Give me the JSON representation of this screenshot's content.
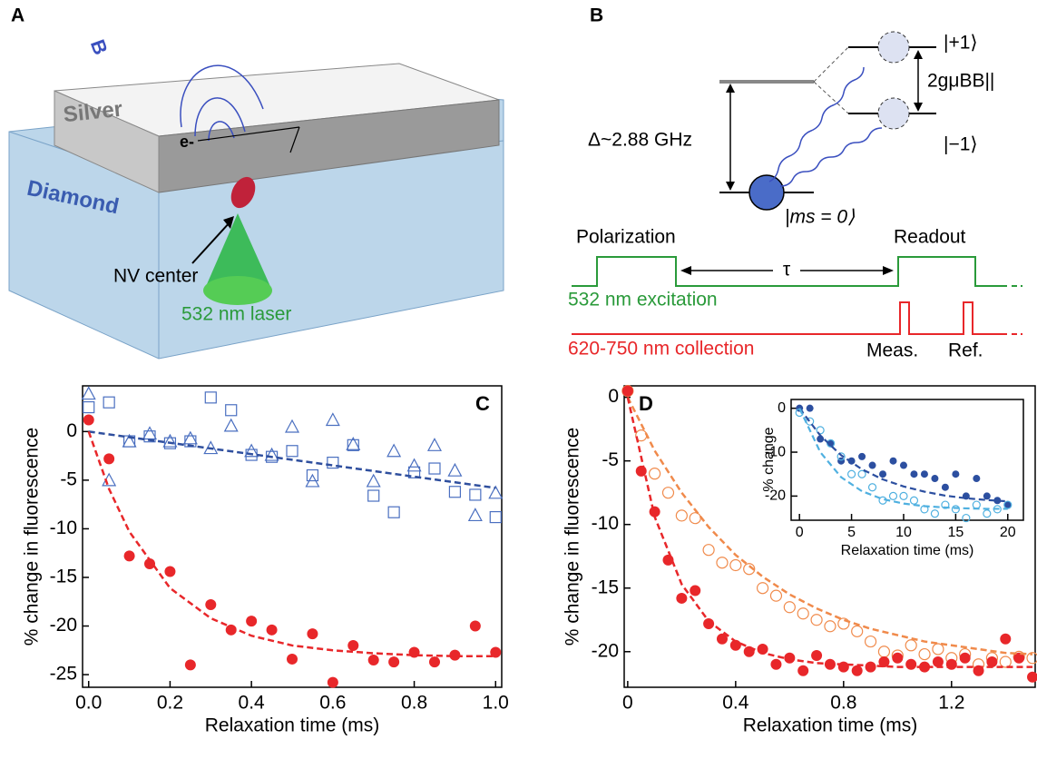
{
  "diagrams": {
    "a": {
      "label": "A",
      "silver": "Silver",
      "diamond": "Diamond",
      "electron": "e-",
      "field": "B",
      "nv_center": "NV center",
      "laser": "532 nm laser"
    },
    "b": {
      "label": "B",
      "plus_one": "|+1⟩",
      "splitting": "2gμBB||",
      "gap": "Δ~2.88 GHz",
      "minus_one": "|−1⟩",
      "ground": "|ms = 0⟩",
      "polarization": "Polarization",
      "tau": "τ",
      "readout": "Readout",
      "excitation": "532 nm excitation",
      "collection": "620-750 nm collection",
      "meas": "Meas.",
      "ref": "Ref."
    }
  },
  "chart_data": [
    {
      "type": "scatter",
      "panel_label": "C",
      "xlabel": "Relaxation time (ms)",
      "ylabel": "% change in fluorescence",
      "xlim": [
        -0.015,
        1.015
      ],
      "ylim": [
        -26.3,
        4.7
      ],
      "xticks": [
        {
          "value": 0,
          "label": "0.0"
        },
        0.2,
        0.4,
        0.6,
        0.8,
        {
          "value": 1,
          "label": "1.0"
        }
      ],
      "yticks": [
        0,
        -5,
        -10,
        -15,
        -20,
        -25
      ],
      "series": [
        {
          "marker": "open-square",
          "color": "#4a6fc0",
          "x": [
            0,
            0.05,
            0.1,
            0.15,
            0.2,
            0.25,
            0.3,
            0.35,
            0.4,
            0.45,
            0.5,
            0.55,
            0.6,
            0.65,
            0.7,
            0.75,
            0.8,
            0.85,
            0.9,
            0.95,
            1.0
          ],
          "values": [
            2.5,
            3,
            -1,
            -0.5,
            -1.2,
            -1,
            3.5,
            2.2,
            -2.4,
            -2.6,
            -2,
            -4.5,
            -3.2,
            -1.4,
            -6.6,
            -8.3,
            -4.2,
            -3.8,
            -6.2,
            -6.5,
            -8.8
          ]
        },
        {
          "marker": "open-triangle",
          "color": "#4a6fc0",
          "x": [
            0,
            0.05,
            0.1,
            0.15,
            0.2,
            0.25,
            0.3,
            0.35,
            0.4,
            0.45,
            0.5,
            0.55,
            0.6,
            0.65,
            0.7,
            0.75,
            0.8,
            0.85,
            0.9,
            0.95,
            1.0
          ],
          "values": [
            3.9,
            -5,
            -1,
            -0.2,
            -1,
            -0.7,
            -1.7,
            0.6,
            -2,
            -2.4,
            0.5,
            -5.1,
            1.2,
            -1.3,
            -5.1,
            -2,
            -3.5,
            -1.4,
            -4,
            -8.6,
            -6.3
          ]
        },
        {
          "marker": "filled-circle",
          "color": "#e8272a",
          "x": [
            0,
            0.05,
            0.1,
            0.15,
            0.2,
            0.25,
            0.3,
            0.35,
            0.4,
            0.45,
            0.5,
            0.55,
            0.6,
            0.65,
            0.7,
            0.75,
            0.8,
            0.85,
            0.9,
            0.95,
            1.0
          ],
          "values": [
            1.2,
            -2.8,
            -12.8,
            -13.6,
            -14.4,
            -24,
            -17.8,
            -20.4,
            -19.5,
            -20.4,
            -23.4,
            -20.8,
            -25.8,
            -22,
            -23.5,
            -23.7,
            -22.7,
            -23.7,
            -23,
            -20,
            -22.7
          ]
        },
        {
          "marker": "dashed-line",
          "color": "#2f4f9e",
          "x": [
            0,
            1.0
          ],
          "values": [
            0,
            -5.8
          ]
        },
        {
          "marker": "dashed-line",
          "color": "#e8272a",
          "x": [
            0,
            0.05,
            0.1,
            0.2,
            0.3,
            0.4,
            0.5,
            0.6,
            0.7,
            0.8,
            0.9,
            1.0
          ],
          "values": [
            0,
            -5.9,
            -10.3,
            -16.1,
            -19.2,
            -21,
            -22,
            -22.5,
            -22.8,
            -23,
            -23.1,
            -23.1
          ]
        }
      ]
    },
    {
      "type": "scatter",
      "panel_label": "D",
      "xlabel": "Relaxation time (ms)",
      "ylabel": "% change in fluorescence",
      "xlim": [
        -0.013,
        1.51
      ],
      "ylim": [
        -22.8,
        0.9
      ],
      "xticks": [
        0,
        0.4,
        0.8,
        1.2
      ],
      "yticks": [
        0,
        -5,
        -10,
        -15,
        -20
      ],
      "series": [
        {
          "marker": "open-circle",
          "color": "#f08a4b",
          "x": [
            0,
            0.05,
            0.1,
            0.15,
            0.2,
            0.25,
            0.3,
            0.35,
            0.4,
            0.45,
            0.5,
            0.55,
            0.6,
            0.65,
            0.7,
            0.75,
            0.8,
            0.85,
            0.9,
            0.95,
            1.0,
            1.05,
            1.1,
            1.15,
            1.2,
            1.25,
            1.3,
            1.35,
            1.4,
            1.45,
            1.5
          ],
          "values": [
            0.5,
            -3,
            -6,
            -7.5,
            -9.3,
            -9.5,
            -12,
            -13,
            -13.2,
            -13.5,
            -15,
            -15.6,
            -16.5,
            -17,
            -17.5,
            -18,
            -17.8,
            -18.4,
            -19.2,
            -20,
            -20.3,
            -19.5,
            -20.2,
            -19.8,
            -20.5,
            -20.2,
            -21,
            -20.5,
            -20.8,
            -20.4,
            -20.5
          ]
        },
        {
          "marker": "filled-circle",
          "color": "#e8272a",
          "x": [
            0,
            0.05,
            0.1,
            0.15,
            0.2,
            0.25,
            0.3,
            0.35,
            0.4,
            0.45,
            0.5,
            0.55,
            0.6,
            0.65,
            0.7,
            0.75,
            0.8,
            0.85,
            0.9,
            0.95,
            1.0,
            1.05,
            1.1,
            1.15,
            1.2,
            1.25,
            1.3,
            1.35,
            1.4,
            1.45,
            1.5
          ],
          "values": [
            0.5,
            -5.8,
            -9,
            -12.8,
            -15.8,
            -15.2,
            -17.8,
            -19,
            -19.5,
            -20,
            -19.8,
            -21,
            -20.5,
            -21.5,
            -20.3,
            -21,
            -21.2,
            -21.5,
            -21.2,
            -20.8,
            -20.5,
            -21,
            -21.2,
            -20.8,
            -21,
            -20.5,
            -21.5,
            -20.8,
            -19,
            -20.5,
            -22
          ]
        },
        {
          "marker": "dashed-line",
          "color": "#f08a4b",
          "x": [
            0,
            0.1,
            0.2,
            0.3,
            0.4,
            0.5,
            0.6,
            0.7,
            0.8,
            0.9,
            1.0,
            1.1,
            1.2,
            1.3,
            1.4,
            1.5
          ],
          "values": [
            0,
            -4.2,
            -7.5,
            -10.2,
            -12.4,
            -14.1,
            -15.5,
            -16.6,
            -17.5,
            -18.2,
            -18.7,
            -19.2,
            -19.5,
            -19.8,
            -20.1,
            -20.2
          ]
        },
        {
          "marker": "dashed-line",
          "color": "#e8272a",
          "x": [
            0,
            0.1,
            0.2,
            0.3,
            0.4,
            0.5,
            0.6,
            0.7,
            0.8,
            0.9,
            1.0,
            1.5
          ],
          "values": [
            0,
            -9.4,
            -14.7,
            -17.6,
            -19.2,
            -20.1,
            -20.6,
            -20.9,
            -21,
            -21.1,
            -21.2,
            -21.2
          ]
        }
      ]
    },
    {
      "type": "scatter",
      "xlabel": "Relaxation time (ms)",
      "ylabel": "% change",
      "xlim": [
        -0.8,
        21.5
      ],
      "ylim": [
        -25.5,
        2
      ],
      "xticks": [
        0,
        5,
        10,
        15,
        20
      ],
      "yticks": [
        0,
        -10,
        -20
      ],
      "series": [
        {
          "marker": "filled-circle",
          "color": "#2c4fa0",
          "x": [
            0,
            1,
            2,
            3,
            4,
            5,
            6,
            7,
            8,
            9,
            10,
            11,
            12,
            13,
            14,
            15,
            16,
            17,
            18,
            19,
            20
          ],
          "values": [
            0,
            0,
            -7,
            -8,
            -12,
            -12,
            -11,
            -13,
            -15,
            -12,
            -13,
            -15,
            -15,
            -16,
            -18,
            -15,
            -20,
            -16,
            -20,
            -21,
            -22
          ]
        },
        {
          "marker": "open-circle",
          "color": "#4fb0e0",
          "x": [
            0,
            1,
            2,
            3,
            4,
            5,
            6,
            7,
            8,
            9,
            10,
            11,
            12,
            13,
            14,
            15,
            16,
            17,
            18,
            19,
            20
          ],
          "values": [
            -1,
            -3,
            -5,
            -8,
            -11,
            -15,
            -15,
            -18,
            -21,
            -20,
            -20,
            -21,
            -23,
            -24,
            -22,
            -23,
            -25,
            -22,
            -24,
            -23,
            -22
          ]
        },
        {
          "marker": "dashed-line",
          "color": "#2c4fa0",
          "x": [
            0,
            2,
            4,
            6,
            8,
            10,
            12,
            14,
            16,
            18,
            20
          ],
          "values": [
            0,
            -6.2,
            -10.7,
            -13.9,
            -16.2,
            -17.8,
            -19,
            -19.9,
            -20.5,
            -20.9,
            -21.2
          ]
        },
        {
          "marker": "dashed-line",
          "color": "#4fb0e0",
          "x": [
            0,
            2,
            4,
            6,
            8,
            10,
            12,
            14,
            16,
            18,
            20
          ],
          "values": [
            0,
            -10,
            -15.7,
            -18.9,
            -20.7,
            -21.7,
            -22.3,
            -22.6,
            -22.8,
            -22.9,
            -22.9
          ]
        }
      ]
    }
  ]
}
